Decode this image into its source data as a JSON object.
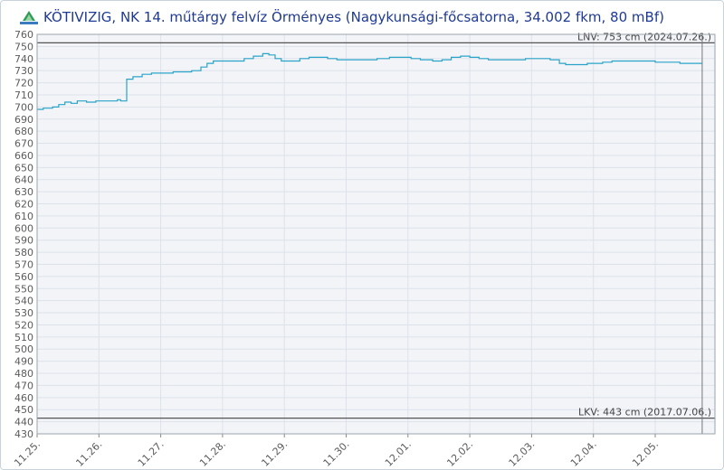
{
  "header": {
    "title": "KÖTIVIZIG, NK 14. műtárgy felvíz Örményes (Nagykunsági-főcsatorna, 34.002 fkm, 80 mBf)",
    "logo_icon": "water-gauge-logo-icon"
  },
  "chart_data": {
    "type": "line",
    "title": "KÖTIVIZIG, NK 14. műtárgy felvíz Örményes (Nagykunsági-főcsatorna, 34.002 fkm, 80 mBf)",
    "xlabel": "",
    "ylabel": "",
    "ylim": [
      430,
      760
    ],
    "xlim": [
      0,
      10.8
    ],
    "yticks": [
      430,
      440,
      450,
      460,
      470,
      480,
      490,
      500,
      510,
      520,
      530,
      540,
      550,
      560,
      570,
      580,
      590,
      600,
      610,
      620,
      630,
      640,
      650,
      660,
      670,
      680,
      690,
      700,
      710,
      720,
      730,
      740,
      750,
      760
    ],
    "xticks": [
      {
        "x": 0,
        "label": "11.25."
      },
      {
        "x": 1,
        "label": "11.26."
      },
      {
        "x": 2,
        "label": "11.27."
      },
      {
        "x": 3,
        "label": "11.28."
      },
      {
        "x": 4,
        "label": "11.29."
      },
      {
        "x": 5,
        "label": "11.30."
      },
      {
        "x": 6,
        "label": "12.01."
      },
      {
        "x": 7,
        "label": "12.02."
      },
      {
        "x": 8,
        "label": "12.03."
      },
      {
        "x": 9,
        "label": "12.04."
      },
      {
        "x": 10,
        "label": "12.05."
      }
    ],
    "grid": true,
    "reference_lines": [
      {
        "value": 753,
        "label": "LNV: 753 cm (2024.07.26.)"
      },
      {
        "value": 443,
        "label": "LKV: 443 cm (2017.07.06.)"
      }
    ],
    "series": [
      {
        "color": "#2aa3c8",
        "points": [
          [
            0.0,
            698
          ],
          [
            0.1,
            699
          ],
          [
            0.25,
            700
          ],
          [
            0.35,
            702
          ],
          [
            0.45,
            704
          ],
          [
            0.55,
            703
          ],
          [
            0.65,
            705
          ],
          [
            0.8,
            704
          ],
          [
            0.95,
            705
          ],
          [
            1.1,
            705
          ],
          [
            1.25,
            705
          ],
          [
            1.3,
            706
          ],
          [
            1.35,
            705
          ],
          [
            1.4,
            705
          ],
          [
            1.45,
            723
          ],
          [
            1.55,
            725
          ],
          [
            1.7,
            727
          ],
          [
            1.85,
            728
          ],
          [
            2.0,
            728
          ],
          [
            2.2,
            729
          ],
          [
            2.4,
            729
          ],
          [
            2.5,
            730
          ],
          [
            2.6,
            730
          ],
          [
            2.65,
            733
          ],
          [
            2.75,
            736
          ],
          [
            2.85,
            738
          ],
          [
            3.0,
            738
          ],
          [
            3.2,
            738
          ],
          [
            3.35,
            740
          ],
          [
            3.5,
            742
          ],
          [
            3.65,
            744
          ],
          [
            3.75,
            743
          ],
          [
            3.85,
            740
          ],
          [
            3.95,
            738
          ],
          [
            4.1,
            738
          ],
          [
            4.25,
            740
          ],
          [
            4.4,
            741
          ],
          [
            4.55,
            741
          ],
          [
            4.7,
            740
          ],
          [
            4.85,
            739
          ],
          [
            5.0,
            739
          ],
          [
            5.15,
            739
          ],
          [
            5.3,
            739
          ],
          [
            5.5,
            740
          ],
          [
            5.7,
            741
          ],
          [
            5.9,
            741
          ],
          [
            6.05,
            740
          ],
          [
            6.2,
            739
          ],
          [
            6.4,
            738
          ],
          [
            6.55,
            739
          ],
          [
            6.7,
            741
          ],
          [
            6.85,
            742
          ],
          [
            7.0,
            741
          ],
          [
            7.15,
            740
          ],
          [
            7.3,
            739
          ],
          [
            7.5,
            739
          ],
          [
            7.7,
            739
          ],
          [
            7.9,
            740
          ],
          [
            8.1,
            740
          ],
          [
            8.3,
            739
          ],
          [
            8.45,
            736
          ],
          [
            8.55,
            735
          ],
          [
            8.7,
            735
          ],
          [
            8.9,
            736
          ],
          [
            9.0,
            736
          ],
          [
            9.15,
            737
          ],
          [
            9.3,
            738
          ],
          [
            9.5,
            738
          ],
          [
            9.7,
            738
          ],
          [
            9.9,
            738
          ],
          [
            10.0,
            737
          ],
          [
            10.2,
            737
          ],
          [
            10.4,
            736
          ],
          [
            10.6,
            736
          ],
          [
            10.76,
            736
          ]
        ]
      }
    ],
    "colors": {
      "line": "#2aa3c8",
      "plot_bg": "#f2f4f8",
      "grid": "#dde2ea",
      "ref_line": "#555555"
    }
  }
}
